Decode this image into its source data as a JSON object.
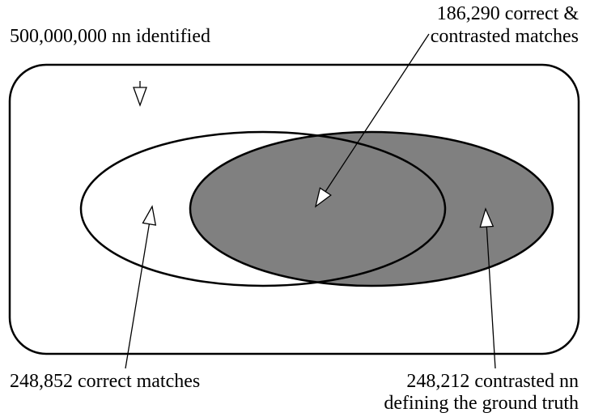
{
  "labels": {
    "total": "500,000,000 nn identified",
    "intersection": [
      "186,290 correct &",
      "contrasted matches"
    ],
    "correct": "248,852 correct matches",
    "contrasted": [
      "248,212 contrasted nn",
      "defining the ground truth"
    ]
  }
}
